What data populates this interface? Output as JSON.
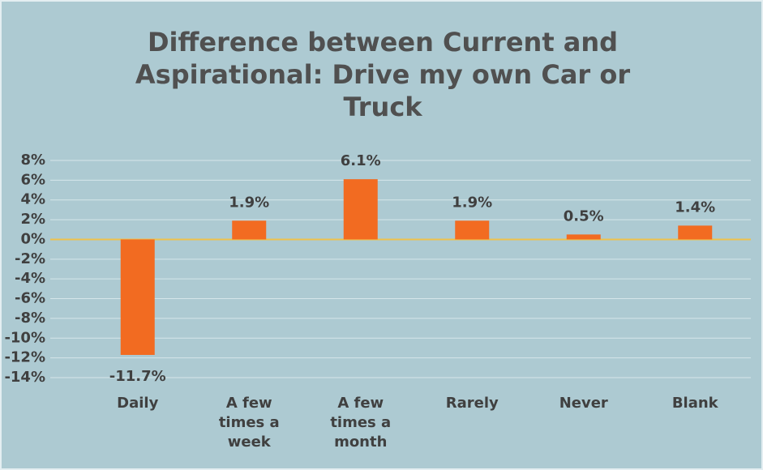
{
  "chart_data": {
    "type": "bar",
    "title": "Difference between Current and Aspirational: Drive my own Car or Truck",
    "categories": [
      "Daily",
      "A few times a week",
      "A few times a month",
      "Rarely",
      "Never",
      "Blank"
    ],
    "values": [
      -11.7,
      1.9,
      6.1,
      1.9,
      0.5,
      1.4
    ],
    "value_labels": [
      "-11.7%",
      "1.9%",
      "6.1%",
      "1.9%",
      "0.5%",
      "1.4%"
    ],
    "color": "#f26b21",
    "ylim": [
      -14,
      8
    ],
    "yticks": [
      {
        "value": 8,
        "label": "8%"
      },
      {
        "value": 6,
        "label": "6%"
      },
      {
        "value": 4,
        "label": "4%"
      },
      {
        "value": 2,
        "label": "2%"
      },
      {
        "value": 0,
        "label": "0%"
      },
      {
        "value": -2,
        "label": "-2%"
      },
      {
        "value": -4,
        "label": "-4%"
      },
      {
        "value": -6,
        "label": "-6%"
      },
      {
        "value": -8,
        "label": "-8%"
      },
      {
        "value": -10,
        "label": "-10%"
      },
      {
        "value": -12,
        "label": "-12%"
      },
      {
        "value": -14,
        "label": "-14%"
      }
    ],
    "grid": true
  }
}
